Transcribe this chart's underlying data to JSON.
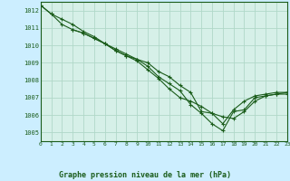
{
  "background_color": "#cceeff",
  "plot_bg_color": "#d6f0e8",
  "grid_color": "#b0d8c8",
  "line_color": "#1a5c1a",
  "marker_color": "#1a5c1a",
  "title": "Graphe pression niveau de la mer (hPa)",
  "xlim": [
    0,
    23
  ],
  "ylim": [
    1004.5,
    1012.5
  ],
  "yticks": [
    1005,
    1006,
    1007,
    1008,
    1009,
    1010,
    1011,
    1012
  ],
  "xticks": [
    0,
    1,
    2,
    3,
    4,
    5,
    6,
    7,
    8,
    9,
    10,
    11,
    12,
    13,
    14,
    15,
    16,
    17,
    18,
    19,
    20,
    21,
    22,
    23
  ],
  "series": [
    {
      "x": [
        0,
        1,
        2,
        3,
        4,
        5,
        6,
        7,
        8,
        9,
        10,
        11,
        12,
        13,
        14,
        15,
        16,
        17,
        18,
        19,
        20,
        21,
        22,
        23
      ],
      "y": [
        1012.3,
        1011.8,
        1011.5,
        1011.2,
        1010.8,
        1010.5,
        1010.1,
        1009.8,
        1009.5,
        1009.2,
        1008.8,
        1008.2,
        1007.8,
        1007.4,
        1006.6,
        1006.1,
        1005.5,
        1005.1,
        1006.2,
        1006.3,
        1007.0,
        1007.1,
        1007.2,
        1007.2
      ]
    },
    {
      "x": [
        0,
        1,
        2,
        3,
        4,
        5,
        6,
        7,
        8,
        9,
        10,
        11,
        12,
        13,
        14,
        15,
        16,
        17,
        18,
        19,
        20,
        21,
        22,
        23
      ],
      "y": [
        1012.3,
        1011.8,
        1011.2,
        1010.9,
        1010.7,
        1010.4,
        1010.1,
        1009.7,
        1009.4,
        1009.1,
        1008.6,
        1008.1,
        1007.5,
        1007.0,
        1006.8,
        1006.5,
        1006.1,
        1005.5,
        1006.3,
        1006.8,
        1007.1,
        1007.2,
        1007.3,
        1007.3
      ]
    },
    {
      "x": [
        3,
        4,
        5,
        6,
        7,
        8,
        9,
        10,
        11,
        12,
        13,
        14,
        15,
        16,
        17,
        18,
        19,
        20,
        21,
        22,
        23
      ],
      "y": [
        1010.9,
        1010.7,
        1010.4,
        1010.1,
        1009.7,
        1009.4,
        1009.2,
        1009.0,
        1008.5,
        1008.2,
        1007.7,
        1007.3,
        1006.2,
        1006.1,
        1005.9,
        1005.8,
        1006.2,
        1006.8,
        1007.1,
        1007.2,
        1007.3
      ]
    }
  ]
}
